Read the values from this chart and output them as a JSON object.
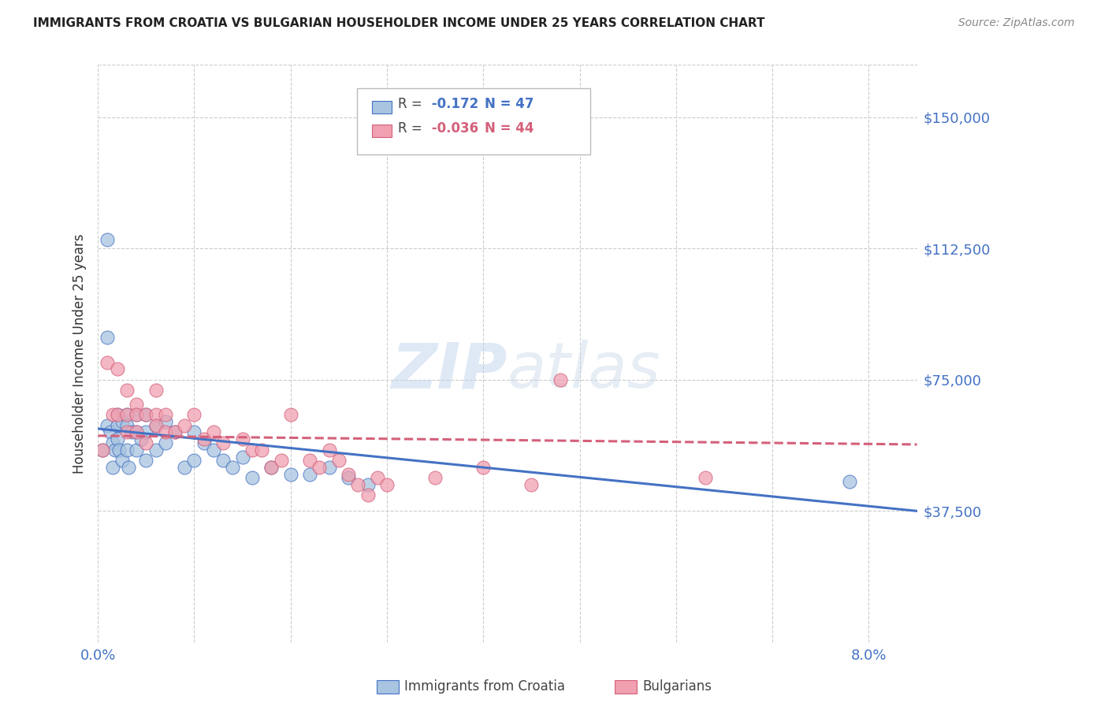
{
  "title": "IMMIGRANTS FROM CROATIA VS BULGARIAN HOUSEHOLDER INCOME UNDER 25 YEARS CORRELATION CHART",
  "source": "Source: ZipAtlas.com",
  "ylabel": "Householder Income Under 25 years",
  "ytick_labels": [
    "$150,000",
    "$112,500",
    "$75,000",
    "$37,500"
  ],
  "ytick_values": [
    150000,
    112500,
    75000,
    37500
  ],
  "ylim": [
    0,
    165000
  ],
  "xlim": [
    0.0,
    0.085
  ],
  "xtick_positions": [
    0.0,
    0.01,
    0.02,
    0.03,
    0.04,
    0.05,
    0.06,
    0.07,
    0.08
  ],
  "legend_r_croatia": "-0.172",
  "legend_n_croatia": "47",
  "legend_r_bulgarian": "-0.036",
  "legend_n_bulgarian": "44",
  "color_croatia": "#a8c4e0",
  "color_bulgarian": "#f0a0b0",
  "color_line_croatia": "#4472c4",
  "color_line_bulgarian": "#d4607a",
  "color_ytick": "#4472c4",
  "color_xtick": "#4472c4",
  "line_croatia_x0": 0.0,
  "line_croatia_y0": 61000,
  "line_croatia_x1": 0.085,
  "line_croatia_y1": 37500,
  "line_bulgarian_x0": 0.0,
  "line_bulgarian_y0": 59000,
  "line_bulgarian_x1": 0.085,
  "line_bulgarian_y1": 56500,
  "croatia_x": [
    0.0005,
    0.001,
    0.001,
    0.0013,
    0.0015,
    0.0015,
    0.0018,
    0.002,
    0.002,
    0.002,
    0.0022,
    0.0025,
    0.0025,
    0.003,
    0.003,
    0.003,
    0.0032,
    0.0035,
    0.004,
    0.004,
    0.004,
    0.0045,
    0.005,
    0.005,
    0.005,
    0.006,
    0.006,
    0.007,
    0.007,
    0.008,
    0.009,
    0.01,
    0.01,
    0.011,
    0.012,
    0.013,
    0.014,
    0.015,
    0.016,
    0.018,
    0.02,
    0.022,
    0.024,
    0.026,
    0.028,
    0.078,
    0.001
  ],
  "croatia_y": [
    55000,
    87000,
    62000,
    60000,
    57000,
    50000,
    55000,
    65000,
    62000,
    58000,
    55000,
    63000,
    52000,
    65000,
    62000,
    55000,
    50000,
    60000,
    65000,
    60000,
    55000,
    58000,
    65000,
    60000,
    52000,
    62000,
    55000,
    63000,
    57000,
    60000,
    50000,
    60000,
    52000,
    57000,
    55000,
    52000,
    50000,
    53000,
    47000,
    50000,
    48000,
    48000,
    50000,
    47000,
    45000,
    46000,
    115000
  ],
  "bulgarian_x": [
    0.0005,
    0.001,
    0.0015,
    0.002,
    0.002,
    0.003,
    0.003,
    0.003,
    0.004,
    0.004,
    0.004,
    0.005,
    0.005,
    0.006,
    0.006,
    0.006,
    0.007,
    0.007,
    0.008,
    0.009,
    0.01,
    0.011,
    0.012,
    0.013,
    0.015,
    0.016,
    0.017,
    0.018,
    0.019,
    0.02,
    0.022,
    0.023,
    0.024,
    0.025,
    0.026,
    0.027,
    0.028,
    0.029,
    0.03,
    0.035,
    0.04,
    0.045,
    0.048,
    0.063
  ],
  "bulgarian_y": [
    55000,
    80000,
    65000,
    78000,
    65000,
    72000,
    65000,
    60000,
    68000,
    65000,
    60000,
    65000,
    57000,
    72000,
    65000,
    62000,
    65000,
    60000,
    60000,
    62000,
    65000,
    58000,
    60000,
    57000,
    58000,
    55000,
    55000,
    50000,
    52000,
    65000,
    52000,
    50000,
    55000,
    52000,
    48000,
    45000,
    42000,
    47000,
    45000,
    47000,
    50000,
    45000,
    75000,
    47000
  ]
}
